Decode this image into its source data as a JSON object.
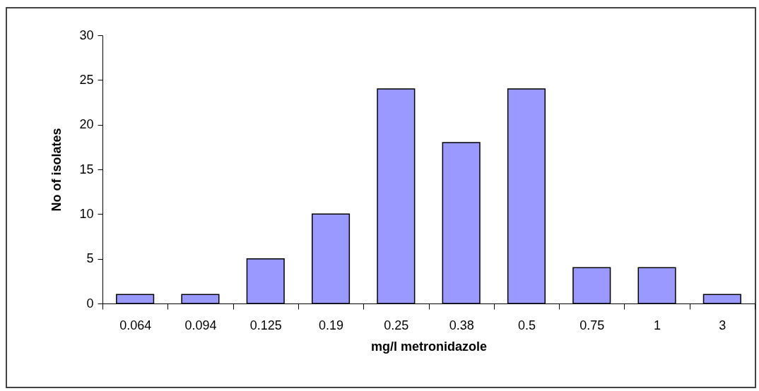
{
  "chart_data": {
    "type": "bar",
    "xlabel": "mg/l metronidazole",
    "ylabel": "No of isolates",
    "categories": [
      "0.064",
      "0.094",
      "0.125",
      "0.19",
      "0.25",
      "0.38",
      "0.5",
      "0.75",
      "1",
      "3"
    ],
    "values": [
      1,
      1,
      5,
      10,
      24,
      18,
      24,
      4,
      4,
      1
    ],
    "color": "#9999ff",
    "ylim": [
      0,
      30
    ],
    "yticks": [
      0,
      5,
      10,
      15,
      20,
      25,
      30
    ],
    "grid": false
  }
}
